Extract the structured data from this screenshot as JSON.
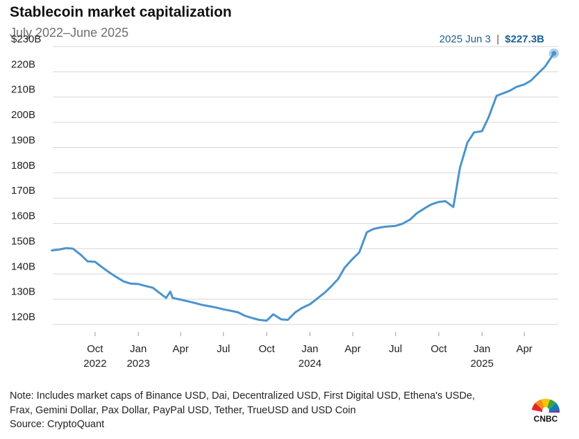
{
  "header": {
    "title": "Stablecoin market capitalization",
    "subtitle": "July 2022–June 2025"
  },
  "annotation": {
    "date": "2025 Jun 3",
    "separator": "|",
    "value": "$227.3B"
  },
  "footer": {
    "note_line1": "Note: Includes market caps of Binance USD, Dai, Decentralized USD, First Digital USD, Ethena's USDe,",
    "note_line2": "Frax, Gemini Dollar, Pax Dollar, PayPal USD, Tether, TrueUSD and USD Coin",
    "source": "Source: CryptoQuant",
    "logo_text": "CNBC"
  },
  "colors": {
    "line": "#4a94cc",
    "grid": "#d6d6d6",
    "annotation": "#1d5e91"
  },
  "chart_data": {
    "type": "line",
    "xlabel": "",
    "ylabel": "",
    "ylim": [
      117,
      230
    ],
    "xlim": [
      "2022-07-03",
      "2025-06-12"
    ],
    "grid": true,
    "y_ticks": [
      {
        "value": 230,
        "label": "$230B"
      },
      {
        "value": 220,
        "label": "220B"
      },
      {
        "value": 210,
        "label": "210B"
      },
      {
        "value": 200,
        "label": "200B"
      },
      {
        "value": 190,
        "label": "190B"
      },
      {
        "value": 180,
        "label": "180B"
      },
      {
        "value": 170,
        "label": "170B"
      },
      {
        "value": 160,
        "label": "160B"
      },
      {
        "value": 150,
        "label": "150B"
      },
      {
        "value": 140,
        "label": "140B"
      },
      {
        "value": 130,
        "label": "130B"
      },
      {
        "value": 120,
        "label": "120B"
      }
    ],
    "x_ticks": [
      {
        "date": "2022-10-01",
        "label": "Oct",
        "year": "2022"
      },
      {
        "date": "2023-01-01",
        "label": "Jan",
        "year": "2023"
      },
      {
        "date": "2023-04-01",
        "label": "Apr",
        "year": ""
      },
      {
        "date": "2023-07-01",
        "label": "Jul",
        "year": ""
      },
      {
        "date": "2023-10-01",
        "label": "Oct",
        "year": ""
      },
      {
        "date": "2024-01-01",
        "label": "Jan",
        "year": "2024"
      },
      {
        "date": "2024-04-01",
        "label": "Apr",
        "year": ""
      },
      {
        "date": "2024-07-01",
        "label": "Jul",
        "year": ""
      },
      {
        "date": "2024-10-01",
        "label": "Oct",
        "year": ""
      },
      {
        "date": "2025-01-01",
        "label": "Jan",
        "year": "2025"
      },
      {
        "date": "2025-04-01",
        "label": "Apr",
        "year": ""
      }
    ],
    "series": [
      {
        "x": [
          "2022-07-01",
          "2022-07-15",
          "2022-08-01",
          "2022-08-15",
          "2022-09-01",
          "2022-09-15",
          "2022-10-01",
          "2022-10-15",
          "2022-11-01",
          "2022-11-15",
          "2022-12-01",
          "2022-12-15",
          "2023-01-01",
          "2023-01-15",
          "2023-02-01",
          "2023-02-15",
          "2023-03-01",
          "2023-03-10",
          "2023-03-15",
          "2023-04-01",
          "2023-04-15",
          "2023-05-01",
          "2023-05-15",
          "2023-06-01",
          "2023-06-15",
          "2023-07-01",
          "2023-07-15",
          "2023-08-01",
          "2023-08-15",
          "2023-09-01",
          "2023-09-15",
          "2023-10-01",
          "2023-10-15",
          "2023-11-01",
          "2023-11-15",
          "2023-12-01",
          "2023-12-15",
          "2024-01-01",
          "2024-01-15",
          "2024-02-01",
          "2024-02-15",
          "2024-03-01",
          "2024-03-15",
          "2024-04-01",
          "2024-04-15",
          "2024-05-01",
          "2024-05-15",
          "2024-06-01",
          "2024-06-15",
          "2024-07-01",
          "2024-07-15",
          "2024-08-01",
          "2024-08-15",
          "2024-09-01",
          "2024-09-15",
          "2024-10-01",
          "2024-10-15",
          "2024-11-01",
          "2024-11-15",
          "2024-12-01",
          "2024-12-15",
          "2025-01-01",
          "2025-01-15",
          "2025-02-01",
          "2025-02-15",
          "2025-03-01",
          "2025-03-15",
          "2025-04-01",
          "2025-04-15",
          "2025-05-01",
          "2025-05-15",
          "2025-06-03"
        ],
        "values": [
          149.3,
          149.6,
          150.2,
          150.0,
          147.5,
          145.0,
          144.8,
          142.8,
          140.5,
          138.8,
          137.0,
          136.2,
          136.0,
          135.3,
          134.5,
          132.5,
          130.5,
          133.0,
          130.5,
          129.8,
          129.2,
          128.5,
          127.8,
          127.2,
          126.7,
          126.0,
          125.5,
          124.8,
          123.5,
          122.5,
          121.8,
          121.5,
          124.0,
          122.0,
          121.8,
          124.8,
          126.5,
          128.0,
          130.0,
          132.5,
          135.0,
          138.0,
          142.5,
          146.0,
          148.5,
          156.5,
          157.8,
          158.5,
          158.8,
          159.0,
          159.8,
          161.5,
          164.0,
          166.0,
          167.5,
          168.5,
          168.8,
          166.5,
          182.0,
          192.0,
          196.0,
          196.5,
          202.0,
          210.5,
          211.5,
          212.5,
          214.0,
          215.0,
          216.5,
          219.5,
          222.0,
          227.3
        ]
      }
    ]
  }
}
